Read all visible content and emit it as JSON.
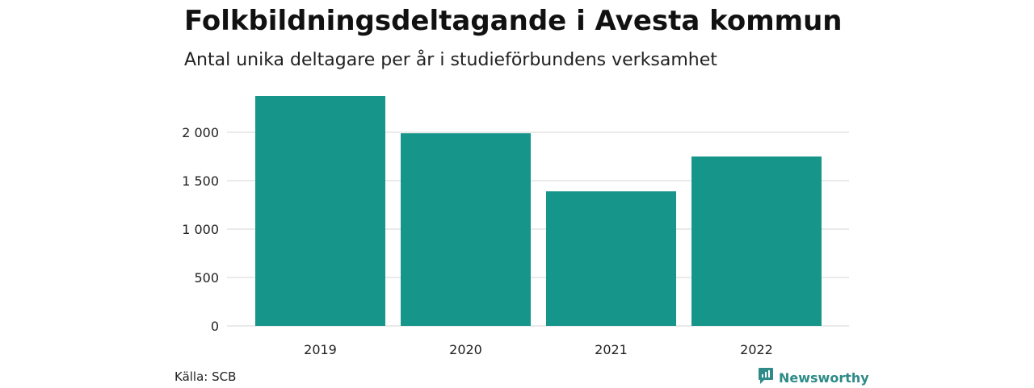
{
  "title": "Folkbildningsdeltagande i Avesta kommun",
  "subtitle": "Antal unika deltagare per år i studieförbundens verksamhet",
  "source": "Källa: SCB",
  "brand": {
    "name": "Newsworthy",
    "icon": "newsworthy-logo-icon"
  },
  "colors": {
    "bar": "#16968a",
    "grid": "#dddddd",
    "brand": "#2e8b87"
  },
  "chart_data": {
    "type": "bar",
    "categories": [
      "2019",
      "2020",
      "2021",
      "2022"
    ],
    "values": [
      2375,
      1990,
      1390,
      1750
    ],
    "ylim": [
      0,
      2400
    ],
    "yticks": [
      0,
      500,
      1000,
      1500,
      2000
    ],
    "ytick_labels": [
      "0",
      "500",
      "1 000",
      "1 500",
      "2 000"
    ],
    "grid": true,
    "xlabel": "",
    "ylabel": ""
  }
}
